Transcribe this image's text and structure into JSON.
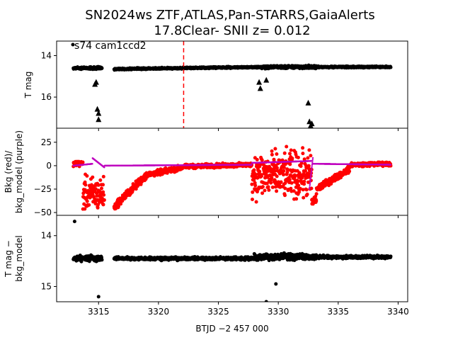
{
  "figure": {
    "title_line1": "SN2024ws  ZTF,ATLAS,Pan-STARRS,GaiaAlerts",
    "title_line2": "17.8Clear- SNII z= 0.012"
  },
  "chart_data": [
    {
      "type": "scatter",
      "panel": "top",
      "ylabel": "T mag",
      "xlim": [
        3311.5,
        3340.8
      ],
      "ylim": [
        17.5,
        13.3
      ],
      "y_inverted": true,
      "yticks": [
        14,
        16
      ],
      "annotation": "s74 cam1ccd2",
      "vline": {
        "x": 3322.1,
        "color": "#ff0000",
        "style": "dashed"
      },
      "series": [
        {
          "marker": "circle",
          "color": "#000000",
          "segments": [
            {
              "x0": 3312.9,
              "x1": 3315.3,
              "y": 14.6,
              "scatter": 0.08
            },
            {
              "x0": 3316.3,
              "x1": 3328.5,
              "y": 14.65,
              "scatter": 0.05,
              "slope_to": 14.55
            },
            {
              "x0": 3328.5,
              "x1": 3333.2,
              "y": 14.55,
              "scatter": 0.1
            },
            {
              "x0": 3333.2,
              "x1": 3339.4,
              "y": 14.55,
              "scatter": 0.05
            }
          ]
        },
        {
          "marker": "triangle",
          "color": "#000000",
          "points": [
            {
              "x": 3314.7,
              "y": 15.4
            },
            {
              "x": 3314.8,
              "y": 15.3
            },
            {
              "x": 3314.9,
              "y": 16.6
            },
            {
              "x": 3315.0,
              "y": 16.8
            },
            {
              "x": 3315.0,
              "y": 17.1
            },
            {
              "x": 3328.4,
              "y": 15.3
            },
            {
              "x": 3328.5,
              "y": 15.6
            },
            {
              "x": 3329.0,
              "y": 15.2
            },
            {
              "x": 3332.5,
              "y": 16.3
            },
            {
              "x": 3332.6,
              "y": 17.2
            },
            {
              "x": 3332.7,
              "y": 17.4
            },
            {
              "x": 3332.8,
              "y": 17.3
            }
          ]
        }
      ]
    },
    {
      "type": "scatter",
      "panel": "middle",
      "ylabel_line1": "Bkg (red)/",
      "ylabel_line2": "bkg_model (purple)",
      "xlim": [
        3311.5,
        3340.8
      ],
      "ylim": [
        -53,
        40
      ],
      "yticks": [
        25,
        0,
        -25,
        -50
      ],
      "series": [
        {
          "name": "Bkg",
          "color": "#ff0000",
          "segments": [
            {
              "x0": 3312.9,
              "x1": 3313.7,
              "y0": 2,
              "y1": 2,
              "scatter": 4
            },
            {
              "x0": 3313.7,
              "x1": 3315.5,
              "y0": -30,
              "y1": -30,
              "scatter": 25
            },
            {
              "x0": 3316.3,
              "x1": 3316.6,
              "y0": -45,
              "y1": -40,
              "scatter": 5
            },
            {
              "x0": 3316.6,
              "x1": 3319.0,
              "y0": -40,
              "y1": -10,
              "scatter": 6
            },
            {
              "x0": 3319.0,
              "x1": 3322.0,
              "y0": -10,
              "y1": -2,
              "scatter": 4
            },
            {
              "x0": 3322.0,
              "x1": 3327.8,
              "y0": -1,
              "y1": 1,
              "scatter": 3
            },
            {
              "x0": 3327.8,
              "x1": 3332.8,
              "y0": -10,
              "y1": -10,
              "scatter": 35
            },
            {
              "x0": 3332.8,
              "x1": 3333.2,
              "y0": -40,
              "y1": -35,
              "scatter": 8
            },
            {
              "x0": 3333.2,
              "x1": 3336.0,
              "y0": -25,
              "y1": -3,
              "scatter": 5
            },
            {
              "x0": 3336.0,
              "x1": 3339.4,
              "y0": 1,
              "y1": 2,
              "scatter": 3
            }
          ]
        },
        {
          "name": "bkg_model",
          "color": "#bf00bf",
          "segments": [
            {
              "x0": 3312.9,
              "x1": 3314.5,
              "y0": 0,
              "y1": 2
            },
            {
              "x0": 3314.5,
              "x1": 3315.5,
              "y0": 8,
              "y1": -2
            },
            {
              "x0": 3315.5,
              "x1": 3327.8,
              "y0": 0,
              "y1": 1
            },
            {
              "x0": 3327.8,
              "x1": 3332.8,
              "y0": 3,
              "y1": 5
            },
            {
              "x0": 3332.6,
              "x1": 3332.9,
              "y0": -25,
              "y1": 10
            },
            {
              "x0": 3332.9,
              "x1": 3339.4,
              "y0": 2,
              "y1": 1
            }
          ]
        }
      ]
    },
    {
      "type": "scatter",
      "panel": "bottom",
      "ylabel_line1": "T mag −",
      "ylabel_line2": "bkg_model",
      "xlabel": "BTJD −2 457 000",
      "xlim": [
        3311.5,
        3340.8
      ],
      "xticks": [
        3315,
        3320,
        3325,
        3330,
        3335,
        3340
      ],
      "ylim": [
        15.3,
        13.6
      ],
      "y_inverted": true,
      "yticks": [
        14,
        15
      ],
      "series": [
        {
          "marker": "circle",
          "color": "#000000",
          "outliers": [
            {
              "x": 3313.0,
              "y": 13.72
            },
            {
              "x": 3329.0,
              "y": 15.3
            },
            {
              "x": 3315.0,
              "y": 15.2
            },
            {
              "x": 3329.8,
              "y": 14.95
            }
          ],
          "segments": [
            {
              "x0": 3312.9,
              "x1": 3315.3,
              "y": 14.45,
              "scatter": 0.08
            },
            {
              "x0": 3316.3,
              "x1": 3328.0,
              "y": 14.45,
              "scatter": 0.04
            },
            {
              "x0": 3328.0,
              "x1": 3333.2,
              "y": 14.42,
              "scatter": 0.09
            },
            {
              "x0": 3333.2,
              "x1": 3339.4,
              "y": 14.42,
              "scatter": 0.04
            }
          ]
        }
      ]
    }
  ]
}
